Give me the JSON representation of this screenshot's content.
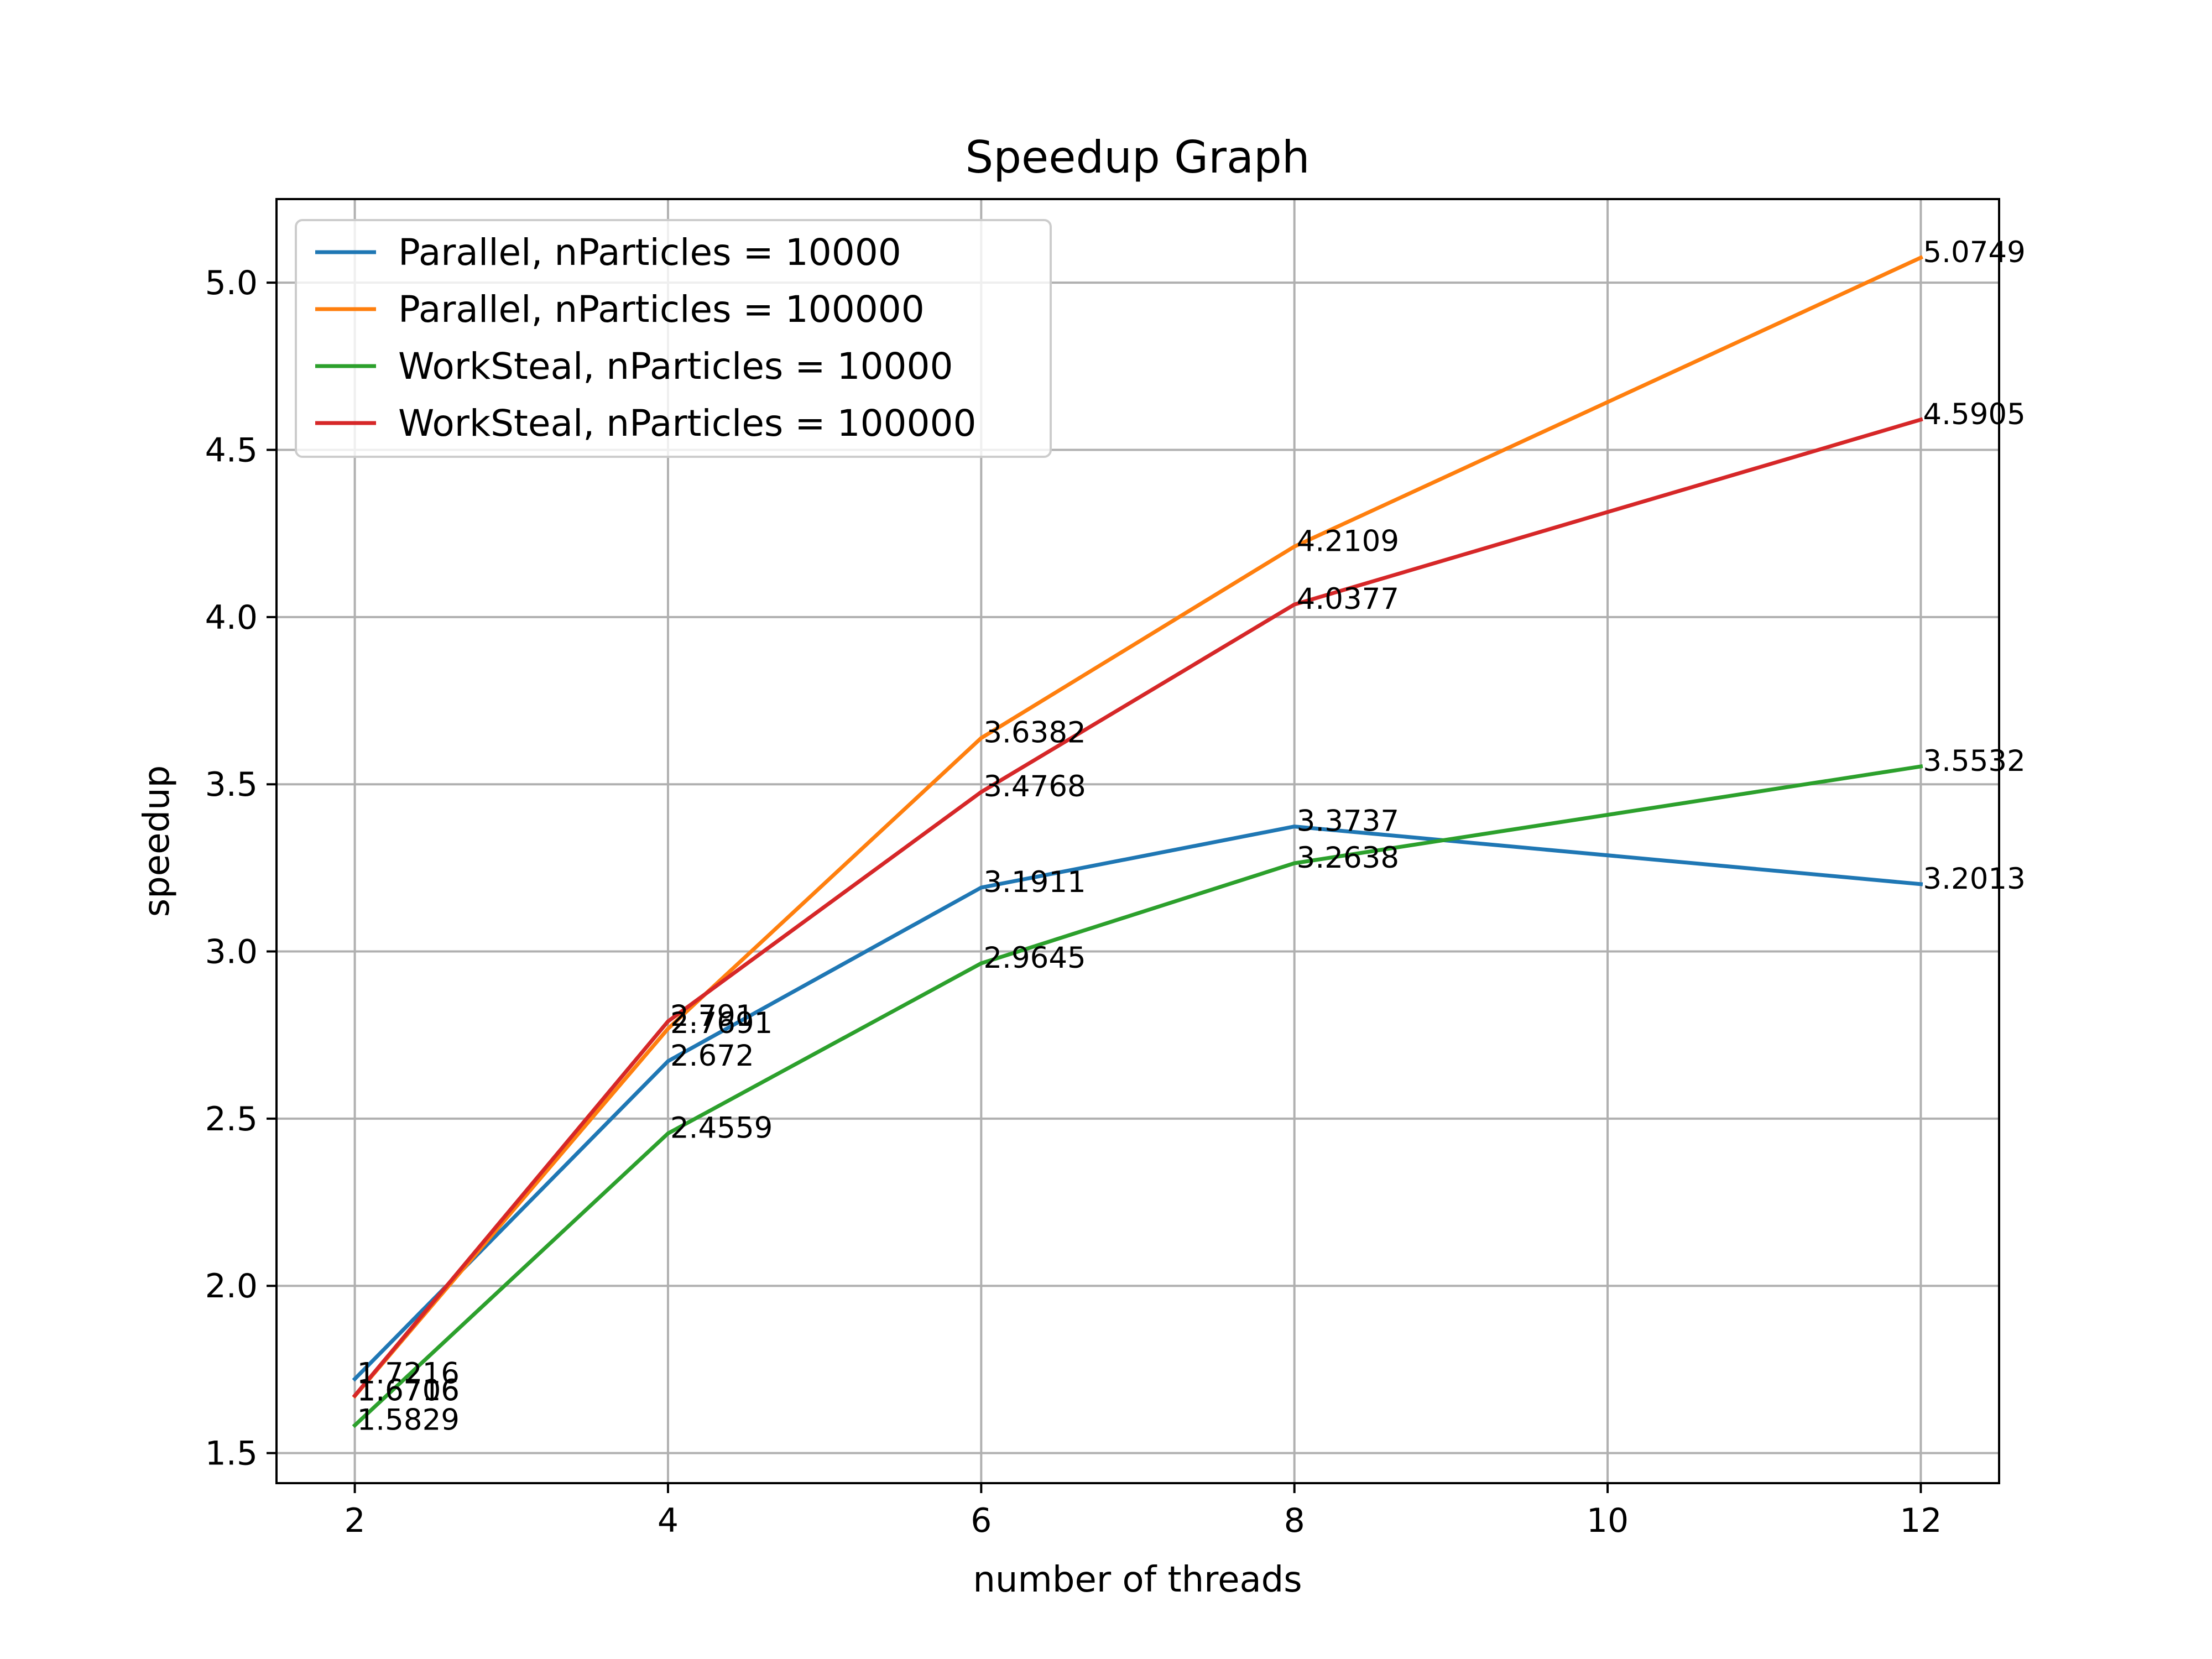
{
  "chart_data": {
    "type": "line",
    "title": "Speedup Graph",
    "xlabel": "number of threads",
    "ylabel": "speedup",
    "xlim": [
      1.5,
      12.5
    ],
    "ylim": [
      1.41,
      5.25
    ],
    "xticks": [
      2,
      4,
      6,
      8,
      10,
      12
    ],
    "xtick_labels": [
      "2",
      "4",
      "6",
      "8",
      "10",
      "12"
    ],
    "yticks": [
      1.5,
      2.0,
      2.5,
      3.0,
      3.5,
      4.0,
      4.5,
      5.0
    ],
    "ytick_labels": [
      "1.5",
      "2.0",
      "2.5",
      "3.0",
      "3.5",
      "4.0",
      "4.5",
      "5.0"
    ],
    "grid": true,
    "legend_position": "top-left",
    "series": [
      {
        "name": "Parallel, nParticles = 10000",
        "color": "#1f77b4",
        "x": [
          2,
          4,
          6,
          8,
          12
        ],
        "y": [
          1.7216,
          2.672,
          3.1911,
          3.3737,
          3.2013
        ],
        "labels": [
          "1.7216",
          "2.672",
          "3.1911",
          "3.3737",
          "3.2013"
        ]
      },
      {
        "name": "Parallel, nParticles = 100000",
        "color": "#ff7f0e",
        "x": [
          2,
          4,
          6,
          8,
          12
        ],
        "y": [
          1.6706,
          2.7691,
          3.6382,
          4.2109,
          5.0749
        ],
        "labels": [
          "1.6706",
          "2.7691",
          "3.6382",
          "4.2109",
          "5.0749"
        ]
      },
      {
        "name": "WorkSteal, nParticles = 10000",
        "color": "#2ca02c",
        "x": [
          2,
          4,
          6,
          8,
          12
        ],
        "y": [
          1.5829,
          2.4559,
          2.9645,
          3.2638,
          3.5532
        ],
        "labels": [
          "1.5829",
          "2.4559",
          "2.9645",
          "3.2638",
          "3.5532"
        ]
      },
      {
        "name": "WorkSteal, nParticles = 100000",
        "color": "#d62728",
        "x": [
          2,
          4,
          6,
          8,
          12
        ],
        "y": [
          1.6716,
          2.791,
          3.4768,
          4.0377,
          4.5905
        ],
        "labels": [
          "1.6716",
          "2.791",
          "3.4768",
          "4.0377",
          "4.5905"
        ]
      }
    ]
  }
}
